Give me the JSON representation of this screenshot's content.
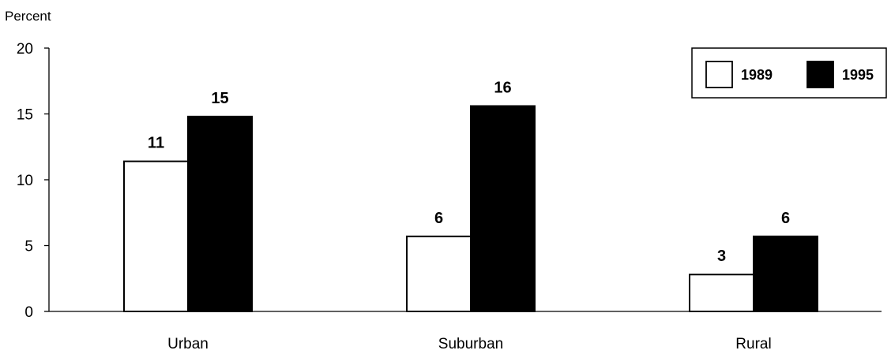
{
  "chart_data": {
    "type": "bar",
    "ylabel": "Percent",
    "ylim": [
      0,
      20
    ],
    "yticks": [
      0,
      5,
      10,
      15,
      20
    ],
    "categories": [
      "Urban",
      "Suburban",
      "Rural"
    ],
    "series": [
      {
        "name": "1989",
        "values": [
          11,
          6,
          3
        ],
        "plotted": [
          11.4,
          5.7,
          2.8
        ],
        "color": "#ffffff"
      },
      {
        "name": "1995",
        "values": [
          15,
          16,
          6
        ],
        "plotted": [
          14.8,
          15.6,
          5.7
        ],
        "color": "#000000"
      }
    ],
    "legend_position": "top-right",
    "grid": false
  }
}
